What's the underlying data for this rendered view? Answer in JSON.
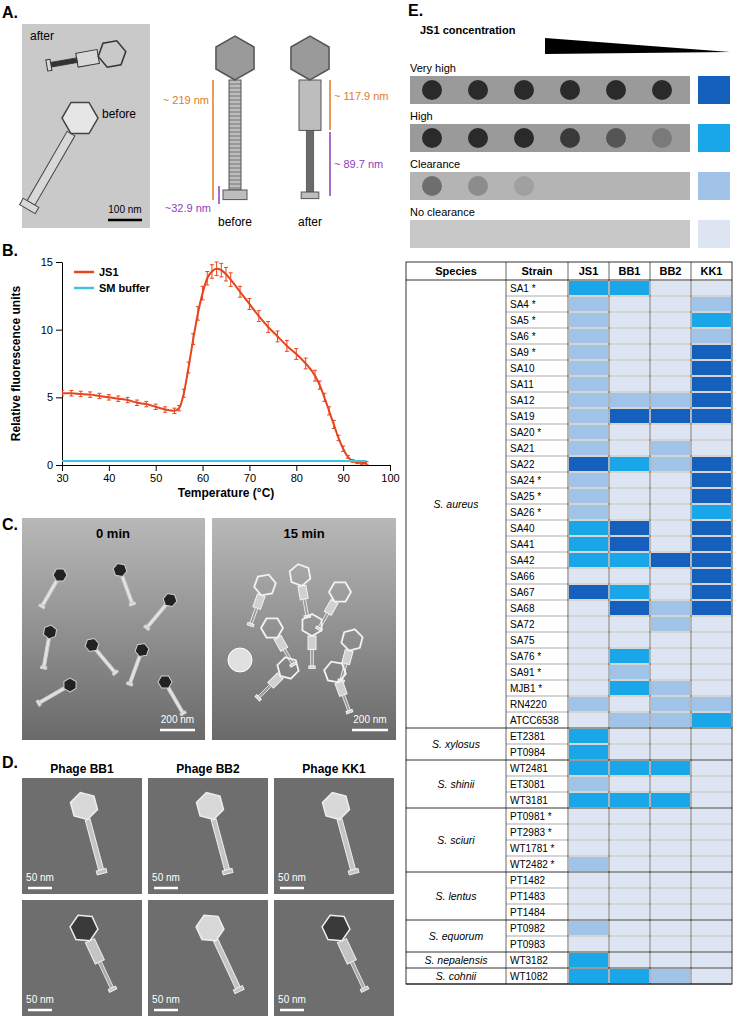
{
  "panel_labels": [
    "A.",
    "B.",
    "C.",
    "D.",
    "E."
  ],
  "panel_a": {
    "micrograph": {
      "labels": [
        "after",
        "before"
      ],
      "scale_bar": "100 nm"
    },
    "schematic": [
      {
        "state": "before",
        "tail_length": "~ 219 nm",
        "baseplate_length": "~32.9 nm"
      },
      {
        "state": "after",
        "sheath_length": "~ 117.9 nm",
        "tube_length": "~ 89.7 nm"
      }
    ]
  },
  "panel_c": {
    "images": [
      {
        "caption": "0 min",
        "scale_bar": "200 nm"
      },
      {
        "caption": "15 min",
        "scale_bar": "200 nm"
      }
    ]
  },
  "panel_d": {
    "images": [
      {
        "title": "Phage BB1",
        "scale_bars": [
          "50 nm",
          "50 nm"
        ]
      },
      {
        "title": "Phage BB2",
        "scale_bars": [
          "50 nm",
          "50 nm"
        ]
      },
      {
        "title": "Phage KK1",
        "scale_bars": [
          "50 nm",
          "50 nm"
        ]
      }
    ]
  },
  "panel_e": {
    "spot_assay_title": "JS1 concentration"
  },
  "chart_data": [
    {
      "type": "line",
      "x_label": "Temperature (°C)",
      "y_label": "Relative fluorescence units",
      "x": [
        30,
        32,
        34,
        36,
        38,
        40,
        42,
        44,
        46,
        48,
        50,
        52,
        54,
        55,
        56,
        57,
        58,
        59,
        60,
        61,
        62,
        63,
        64,
        65,
        66,
        68,
        70,
        72,
        74,
        76,
        78,
        80,
        82,
        84,
        85,
        86,
        87,
        88,
        89,
        90,
        91,
        92,
        93,
        94,
        95
      ],
      "xlim": [
        30,
        100
      ],
      "xticks": [
        30,
        40,
        50,
        60,
        70,
        80,
        90,
        100
      ],
      "ylim": [
        0,
        15
      ],
      "yticks": [
        0,
        5,
        10,
        15
      ],
      "legend": "upper left",
      "series": [
        {
          "name": "JS1",
          "color": "#e8451e",
          "values": [
            5.3,
            5.3,
            5.25,
            5.2,
            5.1,
            5.0,
            4.9,
            4.8,
            4.6,
            4.5,
            4.3,
            4.1,
            4.0,
            4.2,
            5.3,
            7.2,
            9.3,
            11.2,
            12.7,
            13.8,
            14.3,
            14.5,
            14.4,
            14.1,
            13.7,
            12.8,
            11.9,
            11.0,
            10.2,
            9.5,
            8.8,
            8.2,
            7.5,
            6.6,
            5.9,
            5.0,
            4.0,
            3.0,
            2.0,
            1.2,
            0.6,
            0.3,
            0.2,
            0.15,
            0.15
          ],
          "errors": [
            0.2,
            0.2,
            0.2,
            0.2,
            0.2,
            0.2,
            0.2,
            0.2,
            0.2,
            0.2,
            0.2,
            0.2,
            0.2,
            0.2,
            0.3,
            0.4,
            0.4,
            0.5,
            0.5,
            0.5,
            0.5,
            0.5,
            0.5,
            0.5,
            0.5,
            0.4,
            0.4,
            0.4,
            0.4,
            0.4,
            0.4,
            0.4,
            0.4,
            0.4,
            0.3,
            0.3,
            0.3,
            0.3,
            0.2,
            0.2,
            0.1,
            0.1,
            0.1,
            0.1,
            0.1
          ]
        },
        {
          "name": "SM buffer",
          "color": "#3fc5e0",
          "values": [
            0.3,
            0.3,
            0.3,
            0.3,
            0.3,
            0.3,
            0.3,
            0.3,
            0.3,
            0.3,
            0.3,
            0.3,
            0.3,
            0.3,
            0.3,
            0.3,
            0.3,
            0.3,
            0.3,
            0.3,
            0.3,
            0.3,
            0.3,
            0.3,
            0.3,
            0.3,
            0.3,
            0.3,
            0.3,
            0.3,
            0.3,
            0.3,
            0.3,
            0.3,
            0.3,
            0.3,
            0.3,
            0.3,
            0.3,
            0.3,
            0.3,
            0.3,
            0.3,
            0.3,
            0.3
          ]
        }
      ]
    },
    {
      "type": "heatmap",
      "header": [
        "Species",
        "Strain"
      ],
      "columns": [
        "JS1",
        "BB1",
        "BB2",
        "KK1"
      ],
      "levels": [
        {
          "value": 3,
          "label": "Very high",
          "color": "#1560bd"
        },
        {
          "value": 2,
          "label": "High",
          "color": "#1aa7ea"
        },
        {
          "value": 1,
          "label": "Clearance",
          "color": "#a2c3e8"
        },
        {
          "value": 0,
          "label": "No clearance",
          "color": "#dde5f3"
        }
      ],
      "groups": [
        {
          "species": "S. aureus",
          "strains": [
            "SA1 *",
            "SA4 *",
            "SA5 *",
            "SA6 *",
            "SA9 *",
            "SA10",
            "SA11",
            "SA12",
            "SA19",
            "SA20 *",
            "SA21",
            "SA22",
            "SA24 *",
            "SA25 *",
            "SA26 *",
            "SA40",
            "SA41",
            "SA42",
            "SA66",
            "SA67",
            "SA68",
            "SA72",
            "SA75",
            "SA76 *",
            "SA91 *",
            "MJB1 *",
            "RN4220",
            "ATCC6538"
          ],
          "cells": [
            [
              2,
              2,
              0,
              0
            ],
            [
              1,
              0,
              0,
              1
            ],
            [
              1,
              0,
              0,
              2
            ],
            [
              1,
              0,
              0,
              1
            ],
            [
              1,
              0,
              0,
              3
            ],
            [
              1,
              0,
              0,
              3
            ],
            [
              1,
              0,
              0,
              3
            ],
            [
              1,
              1,
              1,
              3
            ],
            [
              1,
              3,
              3,
              3
            ],
            [
              1,
              0,
              0,
              0
            ],
            [
              1,
              0,
              1,
              0
            ],
            [
              3,
              2,
              1,
              3
            ],
            [
              1,
              0,
              0,
              3
            ],
            [
              1,
              0,
              0,
              3
            ],
            [
              1,
              0,
              0,
              2
            ],
            [
              2,
              3,
              0,
              3
            ],
            [
              2,
              3,
              0,
              3
            ],
            [
              2,
              2,
              3,
              3
            ],
            [
              0,
              0,
              0,
              3
            ],
            [
              3,
              2,
              0,
              3
            ],
            [
              0,
              3,
              1,
              3
            ],
            [
              0,
              0,
              1,
              0
            ],
            [
              0,
              0,
              0,
              0
            ],
            [
              0,
              2,
              0,
              0
            ],
            [
              0,
              1,
              0,
              0
            ],
            [
              0,
              2,
              1,
              0
            ],
            [
              1,
              0,
              1,
              1
            ],
            [
              0,
              1,
              1,
              2
            ]
          ]
        },
        {
          "species": "S. xylosus",
          "strains": [
            "ET2381",
            "PT0984"
          ],
          "cells": [
            [
              2,
              0,
              0,
              0
            ],
            [
              2,
              0,
              0,
              0
            ]
          ]
        },
        {
          "species": "S. shinii",
          "strains": [
            "WT2481",
            "ET3081",
            "WT3181"
          ],
          "cells": [
            [
              2,
              2,
              2,
              0
            ],
            [
              1,
              0,
              0,
              0
            ],
            [
              2,
              2,
              2,
              0
            ]
          ]
        },
        {
          "species": "S. sciuri",
          "strains": [
            "PT0981 *",
            "PT2983 *",
            "WT1781 *",
            "WT2482 *"
          ],
          "cells": [
            [
              0,
              0,
              0,
              0
            ],
            [
              0,
              0,
              0,
              0
            ],
            [
              0,
              0,
              0,
              0
            ],
            [
              1,
              0,
              0,
              0
            ]
          ]
        },
        {
          "species": "S. lentus",
          "strains": [
            "PT1482",
            "PT1483",
            "PT1484"
          ],
          "cells": [
            [
              0,
              0,
              0,
              0
            ],
            [
              0,
              0,
              0,
              0
            ],
            [
              0,
              0,
              0,
              0
            ]
          ]
        },
        {
          "species": "S. equorum",
          "strains": [
            "PT0982",
            "PT0983"
          ],
          "cells": [
            [
              1,
              0,
              0,
              0
            ],
            [
              0,
              0,
              0,
              0
            ]
          ]
        },
        {
          "species": "S. nepalensis",
          "strains": [
            "WT3182"
          ],
          "cells": [
            [
              2,
              0,
              0,
              0
            ]
          ]
        },
        {
          "species": "S. cohnii",
          "strains": [
            "WT1082"
          ],
          "cells": [
            [
              2,
              2,
              1,
              0
            ]
          ]
        }
      ]
    }
  ]
}
